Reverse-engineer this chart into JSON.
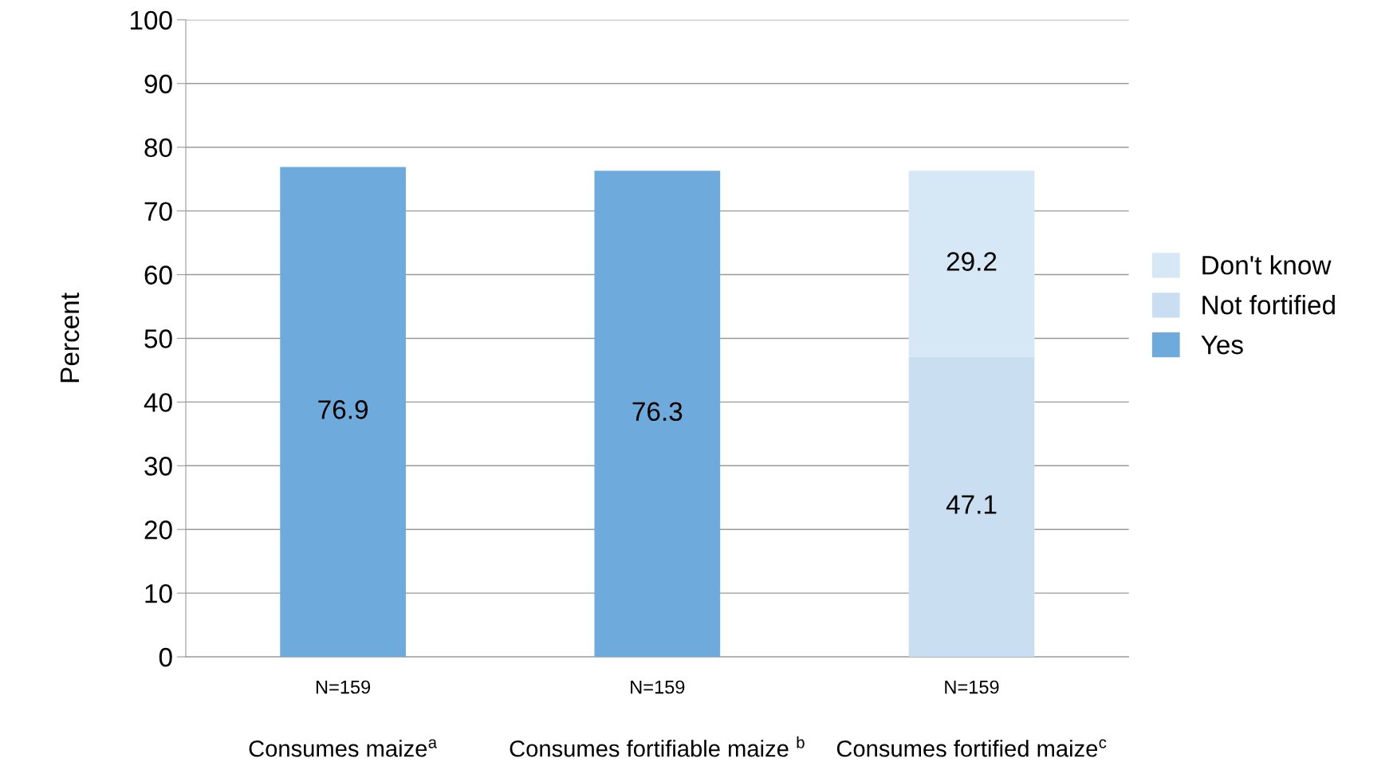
{
  "chart_data": {
    "type": "bar",
    "stacked": true,
    "ylabel": "Percent",
    "categories": [
      "Consumes maize$^{a}$",
      "Consumes fortifiable maize $^{b}$",
      "Consumes fortified maize$^{c}$"
    ],
    "series": [
      {
        "name": "Yes",
        "color": "#6eaadb",
        "values": [
          76.9,
          76.3,
          null
        ]
      },
      {
        "name": "Not fortified",
        "color": "#c9dff1",
        "values": [
          null,
          null,
          47.1
        ]
      },
      {
        "name": "Don't know",
        "color": "#d6e7f5",
        "values": [
          null,
          null,
          29.2
        ]
      }
    ],
    "ylim": [
      0,
      100
    ],
    "yticks": [
      0,
      10,
      20,
      30,
      40,
      50,
      60,
      70,
      80,
      90,
      100
    ],
    "grid": "y",
    "legend": "right",
    "data_labels": true,
    "annotations": [
      "N=159",
      "N=159",
      "N=159"
    ]
  }
}
